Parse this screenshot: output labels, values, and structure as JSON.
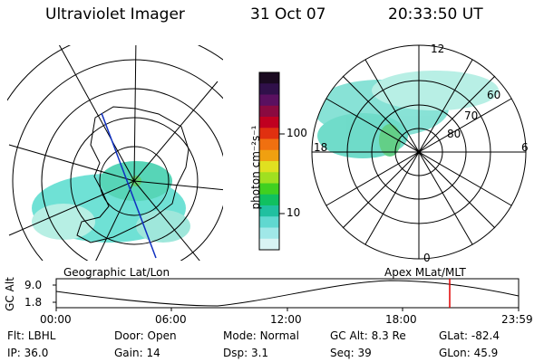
{
  "header": {
    "instrument": "Ultraviolet Imager",
    "date": "31 Oct 07",
    "time": "20:33:50 UT"
  },
  "left_map": {
    "label": "Geographic Lat/Lon"
  },
  "right_map": {
    "label": "Apex  MLat/MLT",
    "lat_labels": [
      "60",
      "70",
      "80"
    ],
    "mlt_labels": {
      "top": "12",
      "left": "18",
      "right": "6",
      "bottom": "0"
    }
  },
  "colorbar": {
    "unit_label": "photon cm⁻²s⁻¹",
    "tick_labels": [
      "100",
      "10"
    ],
    "colors": [
      "#1a0a20",
      "#30104a",
      "#5a1060",
      "#8a0a40",
      "#c00020",
      "#e03010",
      "#f07010",
      "#f0a010",
      "#e0e020",
      "#a0e020",
      "#40d020",
      "#10c060",
      "#20c0a0",
      "#60d8d0",
      "#a0e8e8",
      "#d8f4f4"
    ]
  },
  "altitude_strip": {
    "axis_label": "GC Alt",
    "y_ticks": [
      "9.0",
      "1.8"
    ],
    "x_ticks": [
      "00:00",
      "06:00",
      "12:00",
      "18:00",
      "23:59"
    ],
    "marker_color": "#e00000"
  },
  "status": {
    "filter_label": "Flt:",
    "filter_value": "LBHL",
    "ip_label": "IP:",
    "ip_value": "36.0",
    "door_label": "Door:",
    "door_value": "Open",
    "gain_label": "Gain:",
    "gain_value": "14",
    "mode_label": "Mode:",
    "mode_value": "Normal",
    "dsp_label": "Dsp:",
    "dsp_value": "3.1",
    "gcalt_label": "GC Alt:",
    "gcalt_value": "8.3 Re",
    "seq_label": "Seq:",
    "seq_value": "39",
    "glat_label": "GLat:",
    "glat_value": "-82.4",
    "glon_label": "GLon:",
    "glon_value": "45.9"
  }
}
